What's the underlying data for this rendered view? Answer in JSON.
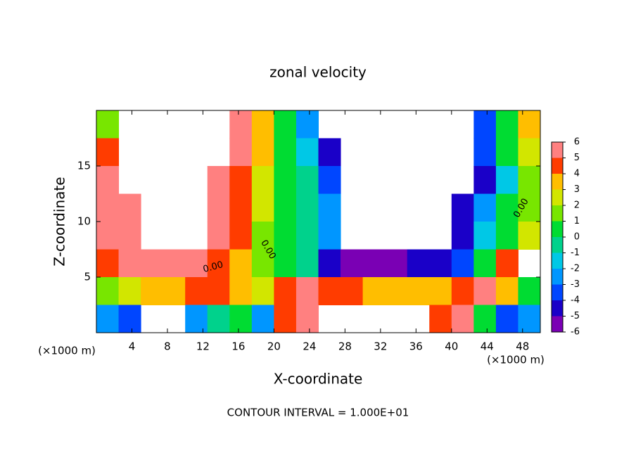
{
  "chart_data": {
    "type": "contour",
    "title": "zonal velocity",
    "x_label": "X-coordinate",
    "y_label": "Z-coordinate",
    "x_unit": "(×1000 m)",
    "y_unit": "(×1000 m)",
    "footer": "CONTOUR INTERVAL = 1.000E+01",
    "annotations": [
      "0.00",
      "0.00",
      "0.00"
    ],
    "xlim": [
      0,
      50
    ],
    "ylim": [
      0,
      20
    ],
    "xticks": [
      4,
      8,
      12,
      16,
      20,
      24,
      28,
      32,
      36,
      40,
      44,
      48
    ],
    "yticks": [
      5,
      10,
      15
    ],
    "x": [
      1.25,
      3.75,
      6.25,
      8.75,
      11.25,
      13.75,
      16.25,
      18.75,
      21.25,
      23.75,
      26.25,
      28.75,
      31.25,
      33.75,
      36.25,
      38.75,
      41.25,
      43.75,
      46.25,
      48.75
    ],
    "y": [
      18.75,
      16.25,
      13.75,
      11.25,
      8.75,
      6.25,
      3.75,
      1.25
    ],
    "z": [
      [
        1,
        null,
        null,
        null,
        null,
        null,
        5,
        3,
        0,
        -3,
        null,
        null,
        null,
        null,
        null,
        null,
        null,
        -4,
        0,
        3
      ],
      [
        4,
        null,
        null,
        null,
        null,
        null,
        5,
        3,
        0,
        -2,
        -5,
        null,
        null,
        null,
        null,
        null,
        null,
        -4,
        0,
        2
      ],
      [
        5,
        null,
        null,
        null,
        null,
        5,
        4,
        2,
        0,
        -1,
        -4,
        null,
        null,
        null,
        null,
        null,
        null,
        -5,
        -2,
        1
      ],
      [
        5,
        5,
        null,
        null,
        null,
        5,
        4,
        2,
        0,
        -1,
        -3,
        null,
        null,
        null,
        null,
        null,
        -5,
        -3,
        0,
        1
      ],
      [
        5,
        5,
        null,
        null,
        null,
        5,
        4,
        1,
        0,
        -1,
        -3,
        null,
        null,
        null,
        null,
        null,
        -5,
        -2,
        0,
        2
      ],
      [
        4,
        5,
        5,
        5,
        5,
        4,
        3,
        1,
        0,
        -1,
        -5,
        -6,
        -6,
        -6,
        -5,
        -5,
        -4,
        0,
        4,
        null
      ],
      [
        1,
        2,
        3,
        3,
        4,
        4,
        3,
        2,
        4,
        5,
        4,
        4,
        3,
        3,
        3,
        3,
        4,
        5,
        3,
        0
      ],
      [
        -3,
        -4,
        null,
        null,
        -3,
        -1,
        0,
        -3,
        4,
        5,
        null,
        null,
        null,
        null,
        null,
        4,
        5,
        0,
        -4,
        -3
      ]
    ],
    "colorbar": {
      "ticks": [
        -6,
        -5,
        -4,
        -3,
        -2,
        -1,
        0,
        1,
        2,
        3,
        4,
        5,
        6
      ],
      "colors": [
        "#7a00b4",
        "#1a00c8",
        "#0046ff",
        "#0096ff",
        "#00c8e6",
        "#00d28c",
        "#00dc32",
        "#78e600",
        "#d2e600",
        "#ffbe00",
        "#ff3c00",
        "#ff8080"
      ]
    }
  }
}
